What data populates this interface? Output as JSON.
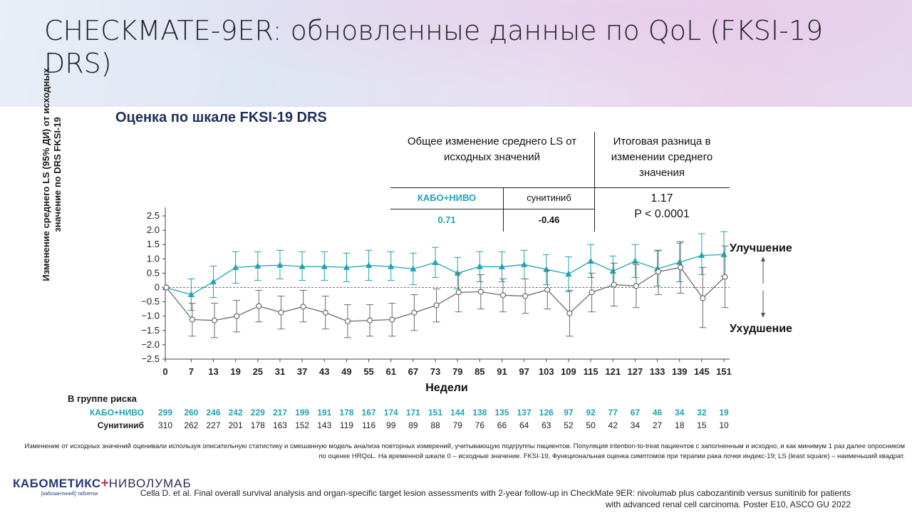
{
  "title": "CHECKMATE-9ER: обновленные данные по QoL (FKSI-19 DRS)",
  "subtitle": "Оценка по шкале  FKSI-19 DRS",
  "table": {
    "col1_header": "Общее изменение среднего LS от исходных значений",
    "col2_header": "Итоговая разница в изменении среднего значения",
    "arm1_label": "КАБО+НИВО",
    "arm2_label": "сунитиниб",
    "arm1_value": "0.71",
    "arm2_value": "-0.46",
    "difference": "1.17",
    "p_value": "P < 0.0001"
  },
  "risk": {
    "heading": "В группе риска",
    "arm1_label": "КАБО+НИВО",
    "arm2_label": "Сунитиниб",
    "arm1_counts": [
      299,
      260,
      246,
      242,
      229,
      217,
      199,
      191,
      178,
      167,
      174,
      171,
      151,
      144,
      138,
      135,
      137,
      126,
      97,
      92,
      77,
      67,
      46,
      34,
      32,
      19
    ],
    "arm2_counts": [
      310,
      262,
      227,
      201,
      178,
      163,
      152,
      143,
      119,
      116,
      99,
      89,
      88,
      79,
      76,
      66,
      64,
      63,
      52,
      50,
      42,
      34,
      27,
      18,
      15,
      10
    ]
  },
  "footnote": "Изменение от исходных значений оценивали используя описательную статистику и смешанную модель анализа повторных измерений, учитывающую подгруппы пациентов. Популяция intention-to-treat пациентов с заполненным и исходно, и как минимум 1 раз далее опросником по оценке HRQoL. На временной шкале 0 – исходные значение. FKSI-19, Функциональная оценка симптомов при терапии рака почки индекс-19; LS (least square) – наименьший квадрат.",
  "reference": "Cella D. et al. Final overall survival analysis and organ-specific target lesion assessments with 2-year follow-up in CheckMate 9ER: nivolumab plus cabozantinib versus sunitinib for patients with advanced renal cell carcinoma. Poster E10, ASCO GU 2022",
  "logo": {
    "brand": "КАБОМЕТИКС",
    "brand2": "НИВОЛУМАБ",
    "sub": "[кабозантиниб] таблетки"
  },
  "colors": {
    "arm1": "#21a3b3",
    "arm2": "#6b6b6b",
    "title_blue": "#1f2f5a"
  },
  "chart_data": {
    "type": "line",
    "xlabel": "Недели",
    "ylabel": "Изменение среднего  LS (95% ДИ) от исходных значение по DRS FKSI-19",
    "x": [
      0,
      7,
      13,
      19,
      25,
      31,
      37,
      43,
      49,
      55,
      61,
      67,
      73,
      79,
      85,
      91,
      97,
      103,
      109,
      115,
      121,
      127,
      133,
      139,
      145,
      151
    ],
    "ylim": [
      -2.5,
      2.5
    ],
    "yticks": [
      -2.5,
      -2.0,
      -1.5,
      -1.0,
      -0.5,
      0,
      0.5,
      1.0,
      1.5,
      2.0,
      2.5
    ],
    "ytick_labels": [
      "−2.5",
      "−2.0",
      "−1.5",
      "−1.0",
      "−0.5",
      "0",
      "0.5",
      "1.0",
      "1.5",
      "2.0",
      "2.5"
    ],
    "improve_label": "Улучшение",
    "worsen_label": "Ухудшение",
    "series": [
      {
        "name": "КАБО+НИВО",
        "values": [
          0,
          -0.25,
          0.2,
          0.7,
          0.75,
          0.78,
          0.73,
          0.73,
          0.7,
          0.77,
          0.73,
          0.65,
          0.87,
          0.5,
          0.73,
          0.72,
          0.8,
          0.63,
          0.47,
          0.92,
          0.57,
          0.92,
          0.65,
          0.88,
          1.12,
          1.15
        ],
        "lower": [
          0,
          -0.8,
          -0.35,
          0.15,
          0.25,
          0.3,
          0.25,
          0.25,
          0.2,
          0.25,
          0.25,
          0.1,
          0.35,
          -0.05,
          0.2,
          0.2,
          0.3,
          0.1,
          -0.15,
          0.35,
          0.05,
          0.35,
          0.05,
          0.2,
          0.45,
          0.4
        ],
        "upper": [
          0,
          0.3,
          0.75,
          1.25,
          1.25,
          1.3,
          1.25,
          1.25,
          1.2,
          1.3,
          1.25,
          1.2,
          1.4,
          1.05,
          1.25,
          1.25,
          1.3,
          1.15,
          1.07,
          1.5,
          1.1,
          1.5,
          1.28,
          1.55,
          1.88,
          1.95
        ]
      },
      {
        "name": "Сунитиниб",
        "values": [
          0,
          -1.12,
          -1.15,
          -1.0,
          -0.65,
          -0.87,
          -0.67,
          -0.88,
          -1.18,
          -1.15,
          -1.12,
          -0.88,
          -0.62,
          -0.17,
          -0.15,
          -0.27,
          -0.3,
          -0.08,
          -0.9,
          -0.17,
          0.1,
          0.05,
          0.55,
          0.7,
          -0.37,
          0.37
        ],
        "lower": [
          0,
          -1.7,
          -1.75,
          -1.55,
          -1.2,
          -1.45,
          -1.2,
          -1.45,
          -1.75,
          -1.7,
          -1.7,
          -1.5,
          -1.2,
          -0.85,
          -0.75,
          -0.85,
          -0.9,
          -0.75,
          -1.7,
          -0.85,
          -0.65,
          -0.7,
          -0.25,
          -0.2,
          -1.4,
          -0.7
        ],
        "upper": [
          0,
          -0.55,
          -0.55,
          -0.45,
          -0.1,
          -0.3,
          -0.1,
          -0.3,
          -0.6,
          -0.6,
          -0.55,
          -0.25,
          -0.05,
          0.5,
          0.45,
          0.3,
          0.3,
          0.6,
          -0.1,
          0.5,
          0.85,
          0.8,
          1.3,
          1.6,
          0.7,
          1.45
        ]
      }
    ]
  }
}
